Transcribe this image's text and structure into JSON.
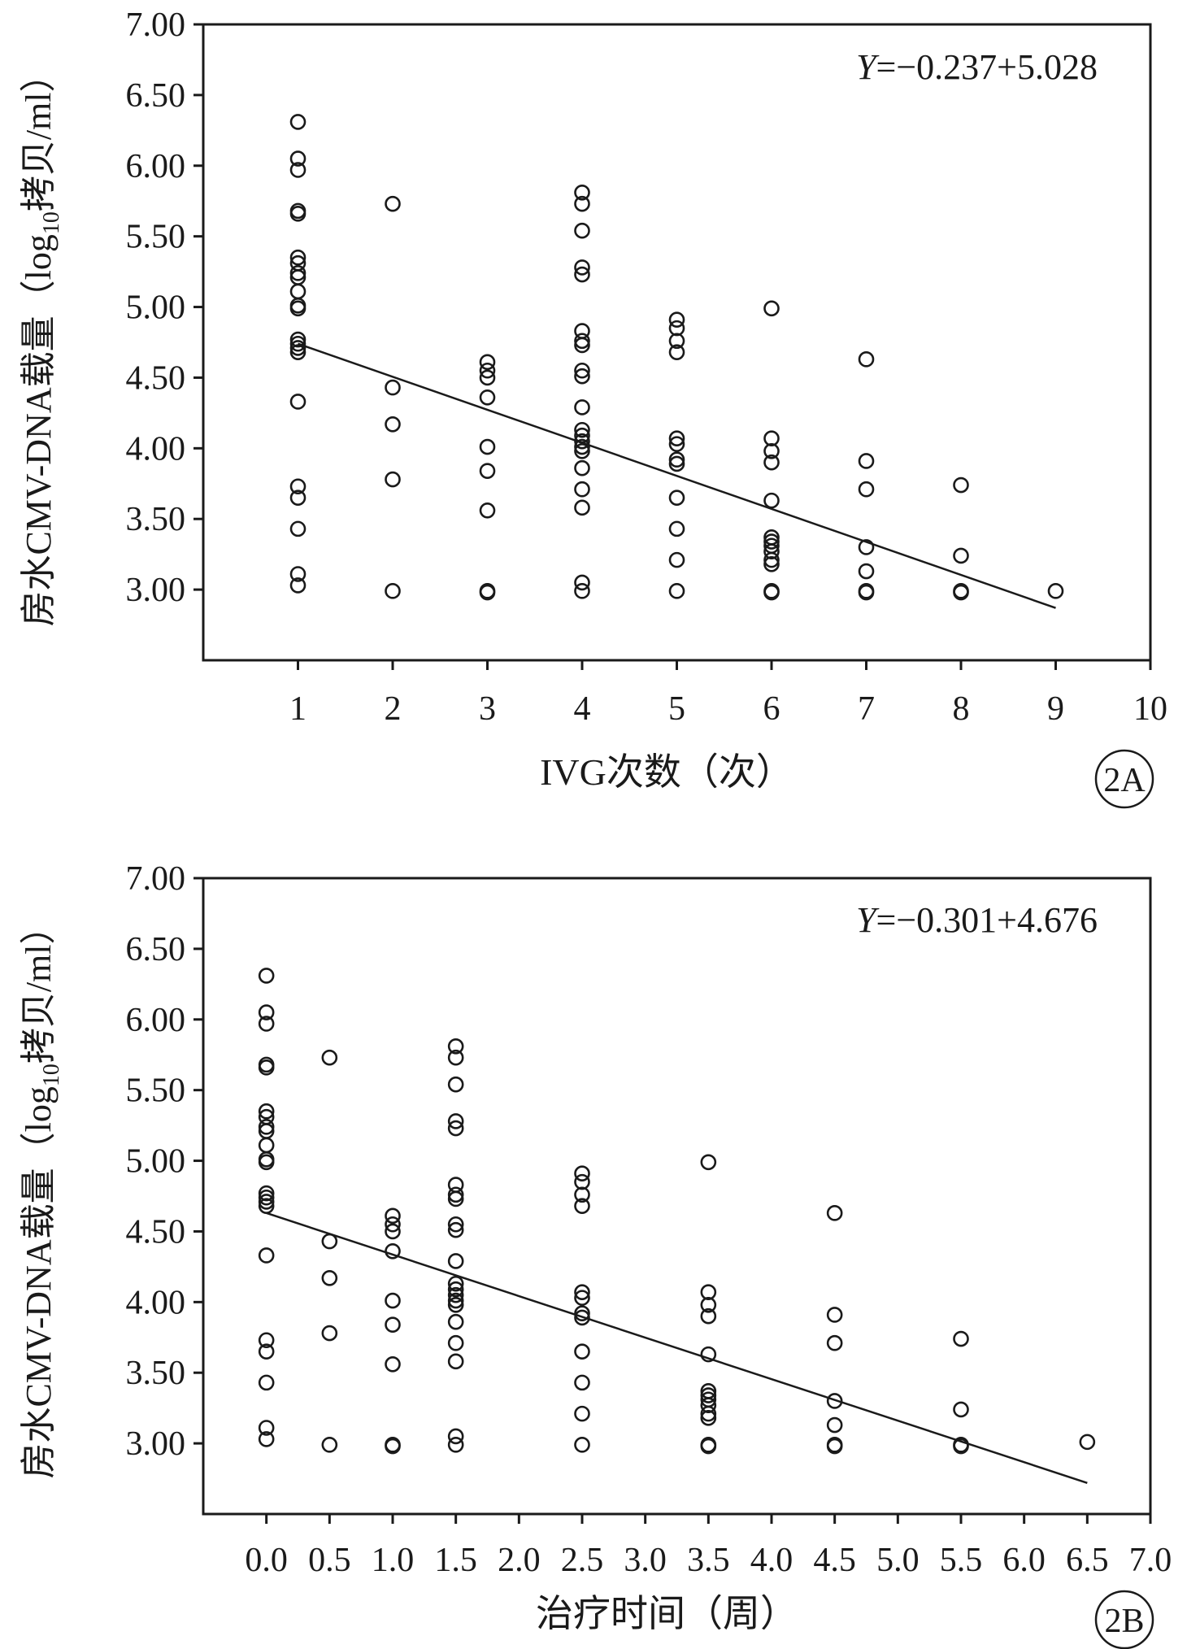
{
  "chart_data": [
    {
      "type": "scatter",
      "panel_label": "2A",
      "equation": {
        "prefix": "Y",
        "rest": "=−0.237+5.028"
      },
      "xlabel": "IVG次数（次）",
      "ylabel_pre": "房水CMV-DNA载量（log",
      "ylabel_sub": "10",
      "ylabel_post": "拷贝/ml）",
      "xlim": [
        0,
        10
      ],
      "ylim": [
        2.5,
        7.0
      ],
      "xticks": [
        1,
        2,
        3,
        4,
        5,
        6,
        7,
        8,
        9,
        10
      ],
      "xtick_labels": [
        "1",
        "2",
        "3",
        "4",
        "5",
        "6",
        "7",
        "8",
        "9",
        "10"
      ],
      "yticks": [
        3.0,
        3.5,
        4.0,
        4.5,
        5.0,
        5.5,
        6.0,
        6.5,
        7.0
      ],
      "ytick_labels": [
        "3.00",
        "3.50",
        "4.00",
        "4.50",
        "5.00",
        "5.50",
        "6.00",
        "6.50",
        "7.00"
      ],
      "trendline": {
        "x": [
          1,
          9
        ],
        "y": [
          4.74,
          2.87
        ]
      },
      "points": [
        [
          1,
          6.31
        ],
        [
          1,
          6.05
        ],
        [
          1,
          5.97
        ],
        [
          1,
          5.68
        ],
        [
          1,
          5.66
        ],
        [
          1,
          5.35
        ],
        [
          1,
          5.31
        ],
        [
          1,
          5.24
        ],
        [
          1,
          5.21
        ],
        [
          1,
          5.11
        ],
        [
          1,
          5.01
        ],
        [
          1,
          4.99
        ],
        [
          1,
          4.77
        ],
        [
          1,
          4.74
        ],
        [
          1,
          4.71
        ],
        [
          1,
          4.68
        ],
        [
          1,
          4.33
        ],
        [
          1,
          3.73
        ],
        [
          1,
          3.65
        ],
        [
          1,
          3.43
        ],
        [
          1,
          3.11
        ],
        [
          1,
          3.03
        ],
        [
          2,
          5.73
        ],
        [
          2,
          4.43
        ],
        [
          2,
          4.17
        ],
        [
          2,
          3.78
        ],
        [
          2,
          2.99
        ],
        [
          3,
          4.61
        ],
        [
          3,
          4.55
        ],
        [
          3,
          4.5
        ],
        [
          3,
          4.36
        ],
        [
          3,
          4.01
        ],
        [
          3,
          3.84
        ],
        [
          3,
          3.56
        ],
        [
          3,
          2.99
        ],
        [
          3,
          2.98
        ],
        [
          4,
          5.81
        ],
        [
          4,
          5.73
        ],
        [
          4,
          5.54
        ],
        [
          4,
          5.28
        ],
        [
          4,
          5.23
        ],
        [
          4,
          4.83
        ],
        [
          4,
          4.76
        ],
        [
          4,
          4.73
        ],
        [
          4,
          4.55
        ],
        [
          4,
          4.51
        ],
        [
          4,
          4.29
        ],
        [
          4,
          4.13
        ],
        [
          4,
          4.09
        ],
        [
          4,
          4.05
        ],
        [
          4,
          4.01
        ],
        [
          4,
          3.98
        ],
        [
          4,
          3.86
        ],
        [
          4,
          3.71
        ],
        [
          4,
          3.58
        ],
        [
          4,
          3.05
        ],
        [
          4,
          2.99
        ],
        [
          5,
          4.91
        ],
        [
          5,
          4.85
        ],
        [
          5,
          4.76
        ],
        [
          5,
          4.68
        ],
        [
          5,
          4.07
        ],
        [
          5,
          4.03
        ],
        [
          5,
          3.92
        ],
        [
          5,
          3.89
        ],
        [
          5,
          3.65
        ],
        [
          5,
          3.43
        ],
        [
          5,
          3.21
        ],
        [
          5,
          2.99
        ],
        [
          6,
          4.99
        ],
        [
          6,
          4.07
        ],
        [
          6,
          3.98
        ],
        [
          6,
          3.9
        ],
        [
          6,
          3.63
        ],
        [
          6,
          3.37
        ],
        [
          6,
          3.34
        ],
        [
          6,
          3.31
        ],
        [
          6,
          3.27
        ],
        [
          6,
          3.21
        ],
        [
          6,
          3.18
        ],
        [
          6,
          2.99
        ],
        [
          6,
          2.98
        ],
        [
          7,
          4.63
        ],
        [
          7,
          3.91
        ],
        [
          7,
          3.71
        ],
        [
          7,
          3.3
        ],
        [
          7,
          3.13
        ],
        [
          7,
          2.99
        ],
        [
          7,
          2.98
        ],
        [
          8,
          3.74
        ],
        [
          8,
          3.24
        ],
        [
          8,
          2.99
        ],
        [
          8,
          2.98
        ],
        [
          9,
          2.99
        ]
      ]
    },
    {
      "type": "scatter",
      "panel_label": "2B",
      "equation": {
        "prefix": "Y",
        "rest": "=−0.301+4.676"
      },
      "xlabel": "治疗时间（周）",
      "ylabel_pre": "房水CMV-DNA载量（log",
      "ylabel_sub": "10",
      "ylabel_post": "拷贝/ml）",
      "xlim": [
        -0.5,
        7.0
      ],
      "ylim": [
        2.5,
        7.0
      ],
      "xticks": [
        0.0,
        0.5,
        1.0,
        1.5,
        2.0,
        2.5,
        3.0,
        3.5,
        4.0,
        4.5,
        5.0,
        5.5,
        6.0,
        6.5,
        7.0
      ],
      "xtick_labels": [
        "0.0",
        "0.5",
        "1.0",
        "1.5",
        "2.0",
        "2.5",
        "3.0",
        "3.5",
        "4.0",
        "4.5",
        "5.0",
        "5.5",
        "6.0",
        "6.5",
        "7.0"
      ],
      "yticks": [
        3.0,
        3.5,
        4.0,
        4.5,
        5.0,
        5.5,
        6.0,
        6.5,
        7.0
      ],
      "ytick_labels": [
        "3.00",
        "3.50",
        "4.00",
        "4.50",
        "5.00",
        "5.50",
        "6.00",
        "6.50",
        "7.00"
      ],
      "trendline": {
        "x": [
          0.0,
          6.5
        ],
        "y": [
          4.63,
          2.72
        ]
      },
      "points": [
        [
          0.0,
          6.31
        ],
        [
          0.0,
          6.05
        ],
        [
          0.0,
          5.97
        ],
        [
          0.0,
          5.68
        ],
        [
          0.0,
          5.66
        ],
        [
          0.0,
          5.35
        ],
        [
          0.0,
          5.31
        ],
        [
          0.0,
          5.24
        ],
        [
          0.0,
          5.21
        ],
        [
          0.0,
          5.11
        ],
        [
          0.0,
          5.01
        ],
        [
          0.0,
          4.99
        ],
        [
          0.0,
          4.77
        ],
        [
          0.0,
          4.74
        ],
        [
          0.0,
          4.71
        ],
        [
          0.0,
          4.68
        ],
        [
          0.0,
          4.33
        ],
        [
          0.0,
          3.73
        ],
        [
          0.0,
          3.65
        ],
        [
          0.0,
          3.43
        ],
        [
          0.0,
          3.11
        ],
        [
          0.0,
          3.03
        ],
        [
          0.5,
          5.73
        ],
        [
          0.5,
          4.43
        ],
        [
          0.5,
          4.17
        ],
        [
          0.5,
          3.78
        ],
        [
          0.5,
          2.99
        ],
        [
          1.0,
          4.61
        ],
        [
          1.0,
          4.55
        ],
        [
          1.0,
          4.5
        ],
        [
          1.0,
          4.36
        ],
        [
          1.0,
          4.01
        ],
        [
          1.0,
          3.84
        ],
        [
          1.0,
          3.56
        ],
        [
          1.0,
          2.99
        ],
        [
          1.0,
          2.98
        ],
        [
          1.5,
          5.81
        ],
        [
          1.5,
          5.73
        ],
        [
          1.5,
          5.54
        ],
        [
          1.5,
          5.28
        ],
        [
          1.5,
          5.23
        ],
        [
          1.5,
          4.83
        ],
        [
          1.5,
          4.76
        ],
        [
          1.5,
          4.73
        ],
        [
          1.5,
          4.55
        ],
        [
          1.5,
          4.51
        ],
        [
          1.5,
          4.29
        ],
        [
          1.5,
          4.13
        ],
        [
          1.5,
          4.09
        ],
        [
          1.5,
          4.05
        ],
        [
          1.5,
          4.01
        ],
        [
          1.5,
          3.98
        ],
        [
          1.5,
          3.86
        ],
        [
          1.5,
          3.71
        ],
        [
          1.5,
          3.58
        ],
        [
          1.5,
          3.05
        ],
        [
          1.5,
          2.99
        ],
        [
          2.5,
          4.91
        ],
        [
          2.5,
          4.85
        ],
        [
          2.5,
          4.76
        ],
        [
          2.5,
          4.68
        ],
        [
          2.5,
          4.07
        ],
        [
          2.5,
          4.03
        ],
        [
          2.5,
          3.92
        ],
        [
          2.5,
          3.89
        ],
        [
          2.5,
          3.65
        ],
        [
          2.5,
          3.43
        ],
        [
          2.5,
          3.21
        ],
        [
          2.5,
          2.99
        ],
        [
          3.5,
          4.99
        ],
        [
          3.5,
          4.07
        ],
        [
          3.5,
          3.98
        ],
        [
          3.5,
          3.9
        ],
        [
          3.5,
          3.63
        ],
        [
          3.5,
          3.37
        ],
        [
          3.5,
          3.34
        ],
        [
          3.5,
          3.31
        ],
        [
          3.5,
          3.27
        ],
        [
          3.5,
          3.21
        ],
        [
          3.5,
          3.18
        ],
        [
          3.5,
          2.99
        ],
        [
          3.5,
          2.98
        ],
        [
          4.5,
          4.63
        ],
        [
          4.5,
          3.91
        ],
        [
          4.5,
          3.71
        ],
        [
          4.5,
          3.3
        ],
        [
          4.5,
          3.13
        ],
        [
          4.5,
          2.99
        ],
        [
          4.5,
          2.98
        ],
        [
          5.5,
          3.74
        ],
        [
          5.5,
          3.24
        ],
        [
          5.5,
          2.99
        ],
        [
          5.5,
          2.98
        ],
        [
          6.5,
          3.01
        ]
      ]
    }
  ]
}
